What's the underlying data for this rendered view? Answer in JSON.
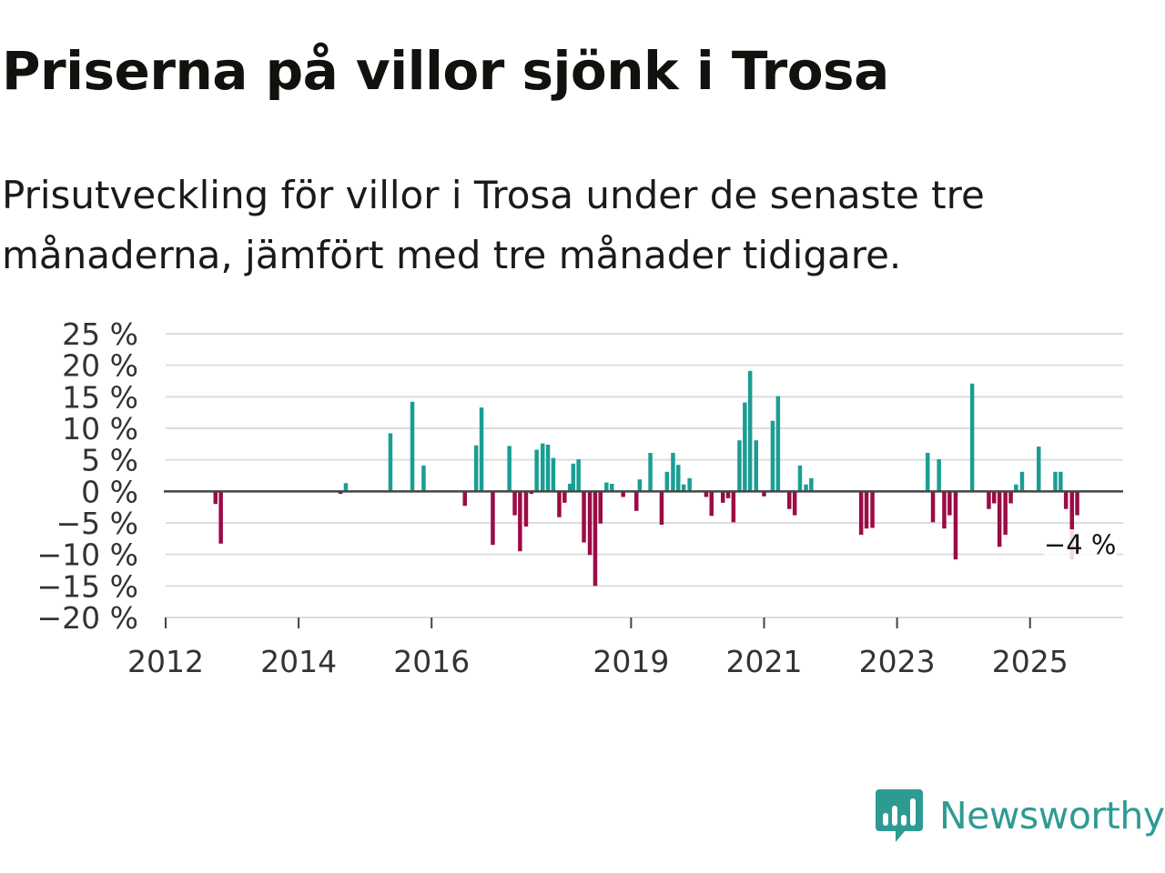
{
  "title": "Priserna på villor sjönk i Trosa",
  "subtitle": "Prisutveckling för villor i Trosa under de senaste tre månaderna, jämfört med tre månader tidigare.",
  "brand": {
    "name": "Newsworthy",
    "logo_icon": "newsworthy-chart-bubble-icon"
  },
  "colors": {
    "positive": "#1a9e94",
    "negative": "#9c0b45",
    "grid": "#dddddd",
    "zero": "#444444",
    "text": "#333333",
    "brand": "#2e9b93"
  },
  "chart_data": {
    "type": "bar",
    "title": "Priserna på villor sjönk i Trosa",
    "xlabel": "",
    "ylabel": "",
    "unit": "%",
    "ylim": [
      -20,
      25
    ],
    "xlim": [
      2012.0,
      2026.4
    ],
    "y_ticks": [
      25,
      20,
      15,
      10,
      5,
      0,
      -5,
      -10,
      -15,
      -20
    ],
    "y_tick_labels": [
      "25 %",
      "20 %",
      "15 %",
      "10 %",
      "5 %",
      "0 %",
      "−5 %",
      "−10 %",
      "−15 %",
      "−20 %"
    ],
    "x_ticks": [
      2012,
      2014,
      2016,
      2019,
      2021,
      2023,
      2025
    ],
    "x_tick_labels": [
      "2012",
      "2014",
      "2016",
      "2019",
      "2021",
      "2023",
      "2025"
    ],
    "grid": true,
    "annotation": {
      "text": "−4 %",
      "x": 2025.67,
      "y": -4
    },
    "series": [
      {
        "name": "Prisutveckling",
        "values": [
          [
            2012.75,
            -2
          ],
          [
            2012.83,
            -8.3
          ],
          [
            2014.63,
            -0.4
          ],
          [
            2014.71,
            1.3
          ],
          [
            2015.38,
            9.2
          ],
          [
            2015.71,
            14.2
          ],
          [
            2015.88,
            4.1
          ],
          [
            2016.5,
            -2.3
          ],
          [
            2016.67,
            7.3
          ],
          [
            2016.75,
            13.3
          ],
          [
            2016.92,
            -8.5
          ],
          [
            2017.17,
            7.2
          ],
          [
            2017.25,
            -3.8
          ],
          [
            2017.33,
            -9.5
          ],
          [
            2017.42,
            -5.6
          ],
          [
            2017.5,
            -0.4
          ],
          [
            2017.58,
            6.6
          ],
          [
            2017.67,
            7.6
          ],
          [
            2017.75,
            7.4
          ],
          [
            2017.83,
            5.3
          ],
          [
            2017.92,
            -4.1
          ],
          [
            2018.0,
            -1.8
          ],
          [
            2018.08,
            1.2
          ],
          [
            2018.13,
            4.4
          ],
          [
            2018.21,
            5.1
          ],
          [
            2018.29,
            -8.1
          ],
          [
            2018.38,
            -10.1
          ],
          [
            2018.46,
            -15
          ],
          [
            2018.54,
            -5.1
          ],
          [
            2018.63,
            1.4
          ],
          [
            2018.71,
            1.2
          ],
          [
            2018.88,
            -0.9
          ],
          [
            2019.08,
            -3.1
          ],
          [
            2019.13,
            1.9
          ],
          [
            2019.29,
            6.1
          ],
          [
            2019.46,
            -5.3
          ],
          [
            2019.54,
            3.1
          ],
          [
            2019.63,
            6.1
          ],
          [
            2019.71,
            4.2
          ],
          [
            2019.79,
            1.1
          ],
          [
            2019.88,
            2.1
          ],
          [
            2020.13,
            -0.9
          ],
          [
            2020.21,
            -3.9
          ],
          [
            2020.38,
            -1.8
          ],
          [
            2020.46,
            -1.1
          ],
          [
            2020.54,
            -4.9
          ],
          [
            2020.63,
            8.1
          ],
          [
            2020.71,
            14.1
          ],
          [
            2020.79,
            19.1
          ],
          [
            2020.88,
            8.1
          ],
          [
            2021.0,
            -0.8
          ],
          [
            2021.13,
            11.2
          ],
          [
            2021.21,
            15.1
          ],
          [
            2021.38,
            -2.8
          ],
          [
            2021.46,
            -3.8
          ],
          [
            2021.54,
            4.1
          ],
          [
            2021.63,
            1.1
          ],
          [
            2021.71,
            2.1
          ],
          [
            2022.46,
            -6.9
          ],
          [
            2022.54,
            -5.9
          ],
          [
            2022.63,
            -5.8
          ],
          [
            2023.46,
            6.1
          ],
          [
            2023.54,
            -4.9
          ],
          [
            2023.63,
            5.1
          ],
          [
            2023.71,
            -5.9
          ],
          [
            2023.79,
            -3.8
          ],
          [
            2023.88,
            -10.8
          ],
          [
            2024.13,
            17.1
          ],
          [
            2024.38,
            -2.8
          ],
          [
            2024.46,
            -1.9
          ],
          [
            2024.54,
            -8.8
          ],
          [
            2024.63,
            -6.9
          ],
          [
            2024.71,
            -1.9
          ],
          [
            2024.79,
            1.1
          ],
          [
            2024.88,
            3.1
          ],
          [
            2025.13,
            7.1
          ],
          [
            2025.38,
            3.1
          ],
          [
            2025.46,
            3.1
          ],
          [
            2025.54,
            -2.8
          ],
          [
            2025.63,
            -10.8
          ],
          [
            2025.71,
            -3.8
          ]
        ]
      }
    ]
  }
}
